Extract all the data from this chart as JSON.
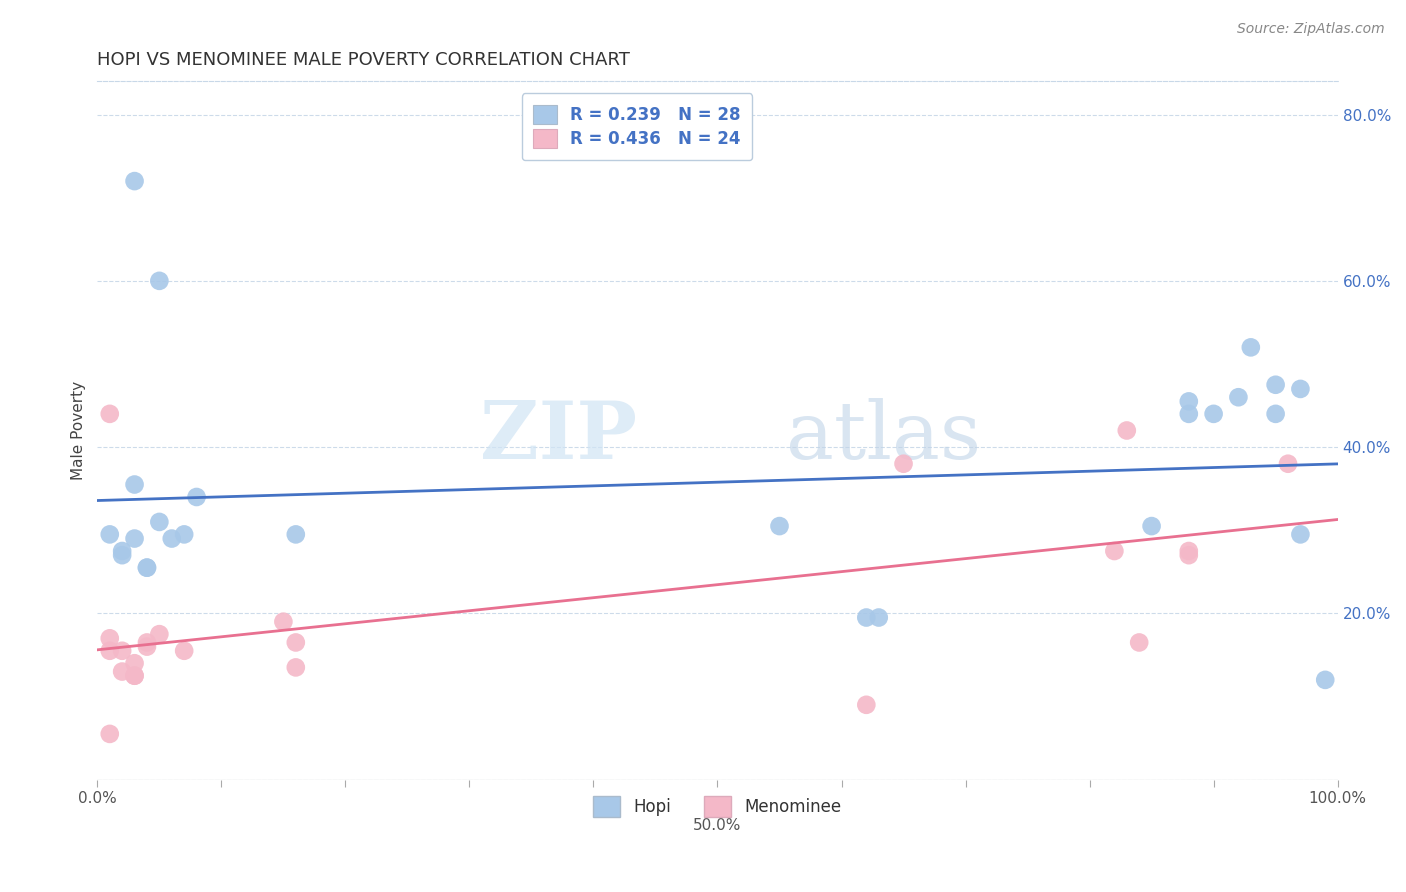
{
  "title": "HOPI VS MENOMINEE MALE POVERTY CORRELATION CHART",
  "source": "Source: ZipAtlas.com",
  "ylabel": "Male Poverty",
  "xlim": [
    0.0,
    1.0
  ],
  "ylim": [
    0.0,
    0.84
  ],
  "xticks": [
    0.0,
    0.1,
    0.2,
    0.3,
    0.4,
    0.5,
    0.6,
    0.7,
    0.8,
    0.9,
    1.0
  ],
  "xticklabels": [
    "0.0%",
    "",
    "",
    "",
    "",
    "",
    "",
    "",
    "",
    "",
    "100.0%"
  ],
  "yticks": [
    0.0,
    0.2,
    0.4,
    0.6,
    0.8
  ],
  "yticklabels": [
    "",
    "20.0%",
    "40.0%",
    "60.0%",
    "80.0%"
  ],
  "hopi_color": "#A8C8E8",
  "menominee_color": "#F4B8C8",
  "hopi_line_color": "#4472C4",
  "menominee_line_color": "#E87090",
  "legend_hopi_r": "R = 0.239",
  "legend_hopi_n": "N = 28",
  "legend_menominee_r": "R = 0.436",
  "legend_menominee_n": "N = 24",
  "watermark_zip": "ZIP",
  "watermark_atlas": "atlas",
  "hopi_x": [
    0.03,
    0.05,
    0.03,
    0.01,
    0.02,
    0.02,
    0.03,
    0.04,
    0.04,
    0.05,
    0.06,
    0.07,
    0.08,
    0.16,
    0.55,
    0.63,
    0.85,
    0.88,
    0.9,
    0.92,
    0.93,
    0.95,
    0.88,
    0.95,
    0.97,
    0.97,
    0.99,
    0.62
  ],
  "hopi_y": [
    0.72,
    0.6,
    0.355,
    0.295,
    0.275,
    0.27,
    0.29,
    0.255,
    0.255,
    0.31,
    0.29,
    0.295,
    0.34,
    0.295,
    0.305,
    0.195,
    0.305,
    0.455,
    0.44,
    0.46,
    0.52,
    0.475,
    0.44,
    0.44,
    0.47,
    0.295,
    0.12,
    0.195
  ],
  "menominee_x": [
    0.01,
    0.01,
    0.01,
    0.02,
    0.02,
    0.03,
    0.03,
    0.03,
    0.04,
    0.04,
    0.05,
    0.07,
    0.15,
    0.16,
    0.16,
    0.62,
    0.65,
    0.82,
    0.83,
    0.84,
    0.88,
    0.88,
    0.96,
    0.01
  ],
  "menominee_y": [
    0.44,
    0.17,
    0.155,
    0.155,
    0.13,
    0.14,
    0.125,
    0.125,
    0.165,
    0.16,
    0.175,
    0.155,
    0.19,
    0.165,
    0.135,
    0.09,
    0.38,
    0.275,
    0.42,
    0.165,
    0.27,
    0.275,
    0.38,
    0.055
  ]
}
